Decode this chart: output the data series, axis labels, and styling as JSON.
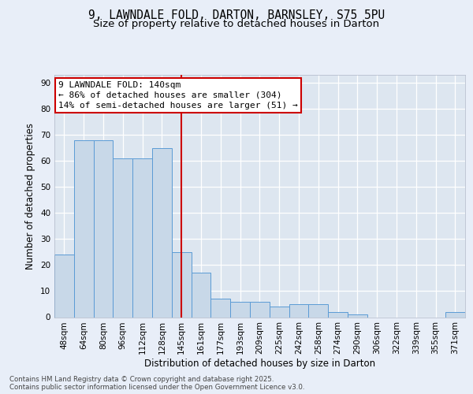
{
  "title_line1": "9, LAWNDALE FOLD, DARTON, BARNSLEY, S75 5PU",
  "title_line2": "Size of property relative to detached houses in Darton",
  "xlabel": "Distribution of detached houses by size in Darton",
  "ylabel": "Number of detached properties",
  "categories": [
    "48sqm",
    "64sqm",
    "80sqm",
    "96sqm",
    "112sqm",
    "128sqm",
    "145sqm",
    "161sqm",
    "177sqm",
    "193sqm",
    "209sqm",
    "225sqm",
    "242sqm",
    "258sqm",
    "274sqm",
    "290sqm",
    "306sqm",
    "322sqm",
    "339sqm",
    "355sqm",
    "371sqm"
  ],
  "values": [
    24,
    68,
    68,
    61,
    61,
    65,
    25,
    17,
    7,
    6,
    6,
    4,
    5,
    5,
    2,
    1,
    0,
    0,
    0,
    0,
    2
  ],
  "bar_color": "#c8d8e8",
  "bar_edge_color": "#5b9bd5",
  "red_line_index": 6,
  "red_line_color": "#cc0000",
  "annotation_text": "9 LAWNDALE FOLD: 140sqm\n← 86% of detached houses are smaller (304)\n14% of semi-detached houses are larger (51) →",
  "annotation_box_facecolor": "#ffffff",
  "annotation_box_edgecolor": "#cc0000",
  "ylim": [
    0,
    93
  ],
  "yticks": [
    0,
    10,
    20,
    30,
    40,
    50,
    60,
    70,
    80,
    90
  ],
  "plot_bg_color": "#dde6f0",
  "fig_bg_color": "#e8eef8",
  "grid_color": "#ffffff",
  "footer_text": "Contains HM Land Registry data © Crown copyright and database right 2025.\nContains public sector information licensed under the Open Government Licence v3.0.",
  "title_fontsize": 10.5,
  "subtitle_fontsize": 9.5,
  "ylabel_fontsize": 8.5,
  "xlabel_fontsize": 8.5,
  "tick_fontsize": 7.5,
  "annotation_fontsize": 8,
  "footer_fontsize": 6.2
}
